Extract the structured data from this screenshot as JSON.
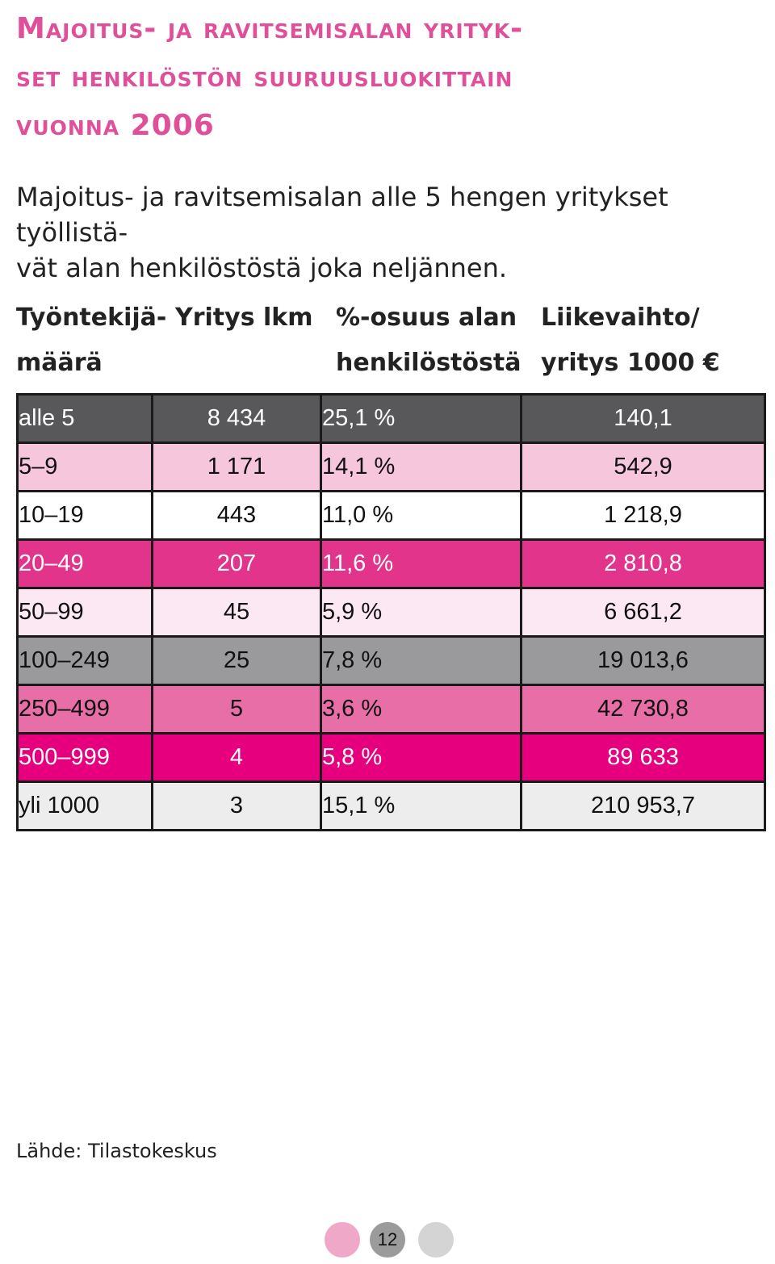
{
  "title": {
    "lines": [
      "Majoitus- ja ravitsemisalan yrityk-",
      "set henkilöstön suuruusluokittain",
      "vuonna 2006"
    ]
  },
  "intro": {
    "lines": [
      "Majoitus- ja ravitsemisalan alle 5 hengen yritykset työllistä-",
      "vät alan henkilöstöstä joka neljännen."
    ]
  },
  "table": {
    "headers": [
      {
        "line1": "Työntekijä-",
        "line2": "määrä"
      },
      {
        "line1": "Yritys lkm",
        "line2": ""
      },
      {
        "line1": "%-osuus alan",
        "line2": "henkilöstöstä"
      },
      {
        "line1": "Liikevaihto/",
        "line2": "yritys 1000 €"
      }
    ],
    "rows": [
      {
        "size": "alle 5",
        "count": "8 434",
        "share": "25,1 %",
        "revenue": "140,1",
        "color": "#58585a"
      },
      {
        "size": "5–9",
        "count": "1 171",
        "share": "14,1 %",
        "revenue": "542,9",
        "color": "#f5c6dc"
      },
      {
        "size": "10–19",
        "count": "443",
        "share": "11,0 %",
        "revenue": "1 218,9",
        "color": "#ffffff"
      },
      {
        "size": "20–49",
        "count": "207",
        "share": "11,6 %",
        "revenue": "2 810,8",
        "color": "#e2348b"
      },
      {
        "size": "50–99",
        "count": "45",
        "share": "5,9 %",
        "revenue": "6 661,2",
        "color": "#fce8f2"
      },
      {
        "size": "100–249",
        "count": "25",
        "share": "7,8 %",
        "revenue": "19 013,6",
        "color": "#9a9a9c"
      },
      {
        "size": "250–499",
        "count": "5",
        "share": "3,6 %",
        "revenue": "42 730,8",
        "color": "#e76ea6"
      },
      {
        "size": "500–999",
        "count": "4",
        "share": "5,8 %",
        "revenue": "89 633",
        "color": "#e6007e"
      },
      {
        "size": "yli 1000",
        "count": "3",
        "share": "15,1 %",
        "revenue": "210 953,7",
        "color": "#ededed"
      }
    ]
  },
  "source": "Lähde: Tilastokeskus",
  "page_number": "12",
  "colors": {
    "accent": "#e0509a",
    "dot_left": "#f0a8c8",
    "dot_mid": "#9b9b9b",
    "dot_right": "#d4d4d4"
  }
}
